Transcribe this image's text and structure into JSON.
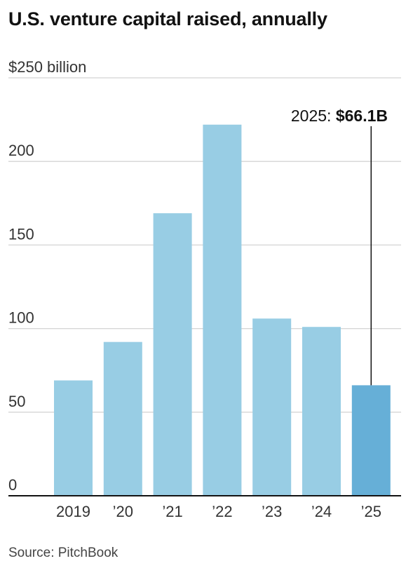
{
  "header": {
    "title": "U.S. venture capital raised, annually"
  },
  "footer": {
    "source": "Source: PitchBook"
  },
  "chart_data": {
    "type": "bar",
    "title": "U.S. venture capital raised, annually",
    "ylabel": "",
    "xlabel": "",
    "categories": [
      "2019",
      "’20",
      "’21",
      "’22",
      "’23",
      "’24",
      "’25"
    ],
    "values": [
      69,
      92,
      169,
      222,
      106,
      101,
      66.1
    ],
    "ylim": [
      0,
      250
    ],
    "y_ticks": [
      {
        "value": 250,
        "label": "$250 billion"
      },
      {
        "value": 200,
        "label": "200"
      },
      {
        "value": 150,
        "label": "150"
      },
      {
        "value": 100,
        "label": "100"
      },
      {
        "value": 50,
        "label": "50"
      },
      {
        "value": 0,
        "label": "0"
      }
    ],
    "grid": true,
    "highlight_index": 6,
    "annotation": {
      "prefix": "2025: ",
      "value_text": "$66.1B"
    },
    "colors": {
      "bar": "#98cde4",
      "bar_highlight": "#66afd7",
      "grid": "#d4d4d4",
      "axis": "#121212"
    }
  }
}
